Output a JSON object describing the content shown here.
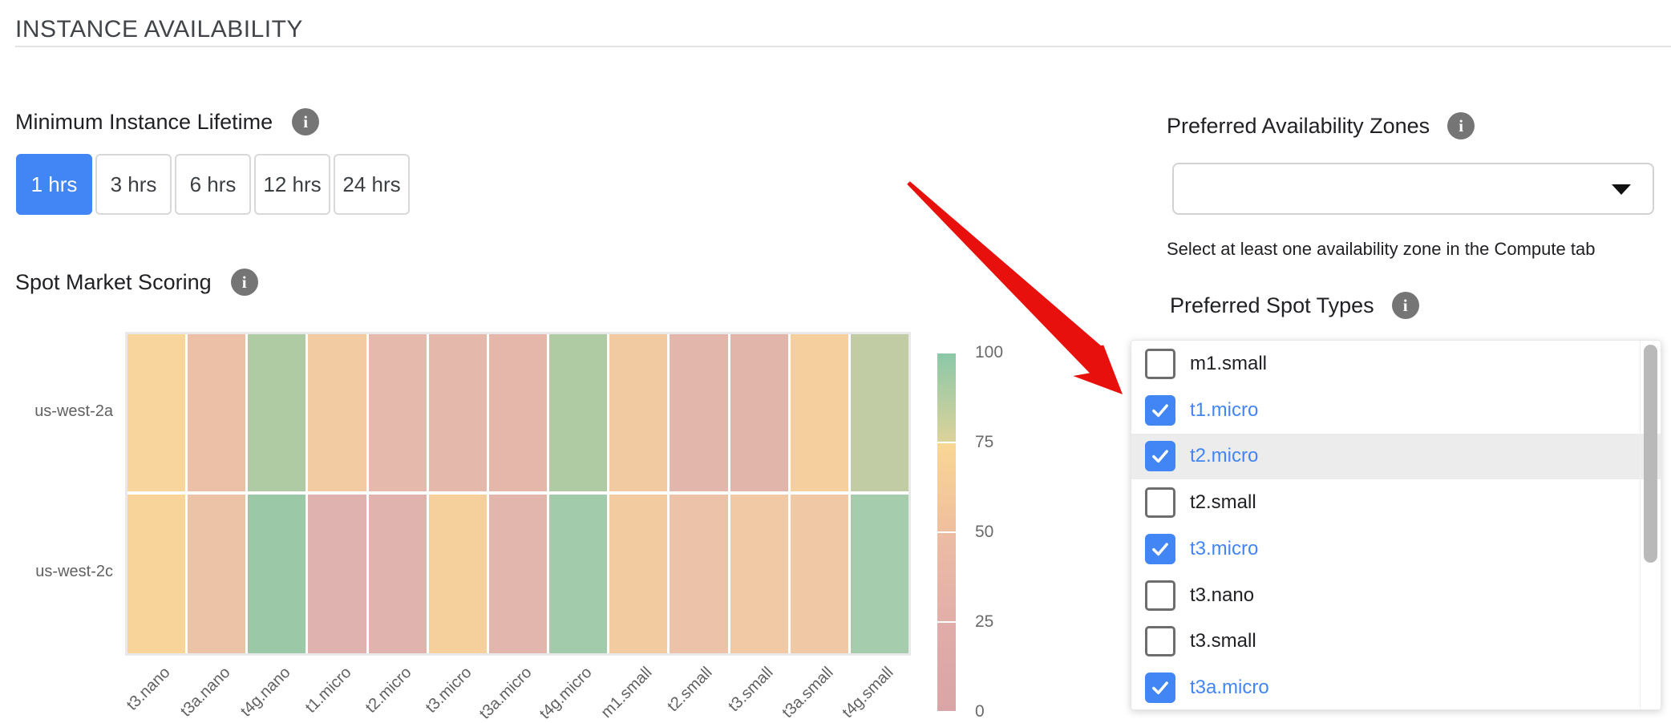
{
  "page": {
    "title": "INSTANCE AVAILABILITY"
  },
  "colors": {
    "accent_blue": "#4285f4",
    "arrow_red": "#e8100c",
    "info_icon_gray": "#757575",
    "highlight_row": "#ececec"
  },
  "lifetime": {
    "label": "Minimum Instance Lifetime",
    "options": [
      "1 hrs",
      "3 hrs",
      "6 hrs",
      "12 hrs",
      "24 hrs"
    ],
    "selected": "1 hrs"
  },
  "scoring": {
    "label": "Spot Market Scoring"
  },
  "availability_zones": {
    "label": "Preferred Availability Zones",
    "value": "",
    "helper": "Select at least one availability zone in the Compute tab"
  },
  "spot_types": {
    "label": "Preferred Spot Types",
    "options": [
      {
        "label": "m1.small",
        "checked": false,
        "highlighted": false
      },
      {
        "label": "t1.micro",
        "checked": true,
        "highlighted": false
      },
      {
        "label": "t2.micro",
        "checked": true,
        "highlighted": true
      },
      {
        "label": "t2.small",
        "checked": false,
        "highlighted": false
      },
      {
        "label": "t3.micro",
        "checked": true,
        "highlighted": false
      },
      {
        "label": "t3.nano",
        "checked": false,
        "highlighted": false
      },
      {
        "label": "t3.small",
        "checked": false,
        "highlighted": false
      },
      {
        "label": "t3a.micro",
        "checked": true,
        "highlighted": false
      }
    ]
  },
  "chart_data": {
    "type": "heatmap",
    "title": "Spot Market Scoring",
    "x_categories": [
      "t3.nano",
      "t3a.nano",
      "t4g.nano",
      "t1.micro",
      "t2.micro",
      "t3.micro",
      "t3a.micro",
      "t4g.micro",
      "m1.small",
      "t2.small",
      "t3.small",
      "t3a.small",
      "t4g.small"
    ],
    "y_categories": [
      "us-west-2a",
      "us-west-2c"
    ],
    "value_range": [
      0,
      100
    ],
    "series": [
      {
        "name": "us-west-2a",
        "values": [
          65,
          45,
          82,
          57,
          36,
          35,
          35,
          82,
          56,
          33,
          33,
          63,
          77
        ],
        "colors": [
          "#f8d59d",
          "#ebc0a7",
          "#aecba3",
          "#f3cba3",
          "#e5b9ac",
          "#e4b8ab",
          "#e4b7aa",
          "#aecba4",
          "#f2caa2",
          "#e3b6ab",
          "#e2b5aa",
          "#f5cf9d",
          "#c1cca4"
        ]
      },
      {
        "name": "us-west-2c",
        "values": [
          66,
          47,
          90,
          22,
          24,
          64,
          30,
          88,
          58,
          46,
          54,
          53,
          87
        ],
        "colors": [
          "#f8d49b",
          "#edc3a7",
          "#9bc8a7",
          "#dfb2b0",
          "#e0b3af",
          "#f6d09c",
          "#e2b5ad",
          "#a2cbab",
          "#f3cba0",
          "#ecc2a8",
          "#f1c9a4",
          "#f0c8a5",
          "#a5ccac"
        ]
      }
    ],
    "colorbar": {
      "ticks": [
        100,
        75,
        50,
        25,
        0
      ],
      "segments": [
        {
          "from": 100,
          "to": 75,
          "top": "#8bc8a8",
          "bottom": "#dcd29b"
        },
        {
          "from": 75,
          "to": 50,
          "top": "#f8d794",
          "bottom": "#efbf9d"
        },
        {
          "from": 50,
          "to": 25,
          "top": "#ecbda3",
          "bottom": "#e2afa9"
        },
        {
          "from": 25,
          "to": 0,
          "top": "#e0ada9",
          "bottom": "#d9a5a6"
        }
      ]
    },
    "legend_position": "right",
    "grid": false
  }
}
